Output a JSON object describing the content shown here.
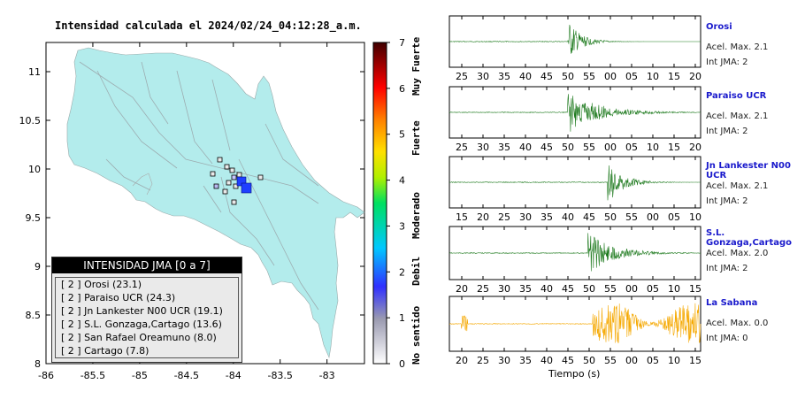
{
  "map": {
    "title": "Intensidad calculada el 2024/02/24_04:12:28_a.m.",
    "x_ticks": [
      "-86",
      "-85.5",
      "-85",
      "-84.5",
      "-84",
      "-83.5",
      "-83"
    ],
    "y_ticks": [
      "8",
      "8.5",
      "9",
      "9.5",
      "10",
      "10.5",
      "11"
    ],
    "xlim": [
      -86,
      -82.6
    ],
    "ylim": [
      8,
      11.3
    ],
    "land_color": "#b3ecec",
    "epicenter_color": "#1f3fff",
    "legend": {
      "title": "INTENSIDAD JMA [0 a 7]",
      "rows": [
        "[ 2 ]  Orosi (23.1)",
        "[ 2 ]  Paraiso UCR (24.3)",
        "[ 2 ]  Jn Lankester N00 UCR (19.1)",
        "[ 2 ]  S.L. Gonzaga,Cartago (13.6)",
        "[ 2 ]  San Rafael Oreamuno (8.0)",
        "[ 2 ]  Cartago (7.8)"
      ]
    }
  },
  "colorbar": {
    "ticks": [
      "0",
      "1",
      "2",
      "3",
      "4",
      "5",
      "6",
      "7"
    ],
    "range": [
      0,
      7
    ],
    "labels": [
      "No sentido",
      "Debil",
      "Moderado",
      "Fuerte",
      "Muy Fuerte"
    ]
  },
  "chart_data": [
    {
      "type": "line",
      "station": "Orosi",
      "acel_label": "Acel. Max. 2.1",
      "int_label": "Int JMA: 2",
      "color": "#1e7a1e",
      "x_ticks": [
        "25",
        "30",
        "35",
        "40",
        "45",
        "50",
        "55",
        "00",
        "05",
        "10",
        "15",
        "20"
      ]
    },
    {
      "type": "line",
      "station": "Paraiso UCR",
      "acel_label": "Acel. Max. 2.1",
      "int_label": "Int JMA: 2",
      "color": "#1e7a1e",
      "x_ticks": [
        "25",
        "30",
        "35",
        "40",
        "45",
        "50",
        "55",
        "00",
        "05",
        "10",
        "15",
        "20"
      ]
    },
    {
      "type": "line",
      "station": "Jn Lankester N00 UCR",
      "acel_label": "Acel. Max. 2.1",
      "int_label": "Int JMA: 2",
      "color": "#1e7a1e",
      "x_ticks": [
        "15",
        "20",
        "25",
        "30",
        "35",
        "40",
        "45",
        "50",
        "55",
        "00",
        "05",
        "10"
      ]
    },
    {
      "type": "line",
      "station": "S.L. Gonzaga,Cartago",
      "acel_label": "Acel. Max. 2.0",
      "int_label": "Int JMA: 2",
      "color": "#1e7a1e",
      "x_ticks": [
        "20",
        "25",
        "30",
        "35",
        "40",
        "45",
        "50",
        "55",
        "00",
        "05",
        "10",
        "15"
      ]
    },
    {
      "type": "line",
      "station": "La Sabana",
      "acel_label": "Acel. Max. 0.0",
      "int_label": "Int JMA: 0",
      "color": "#f5a800",
      "x_ticks": [
        "20",
        "25",
        "30",
        "35",
        "40",
        "45",
        "50",
        "55",
        "00",
        "05",
        "10",
        "15"
      ],
      "xlabel": "Tiempo (s)"
    }
  ]
}
